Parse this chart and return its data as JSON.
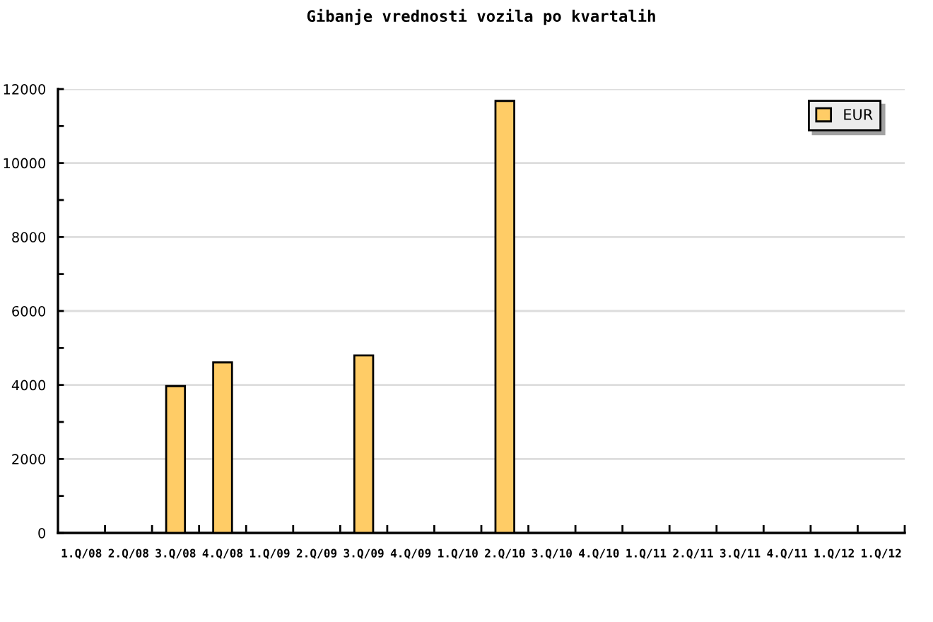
{
  "chart_data": {
    "type": "bar",
    "title": "Gibanje vrednosti vozila po kvartalih",
    "categories": [
      "1.Q/08",
      "2.Q/08",
      "3.Q/08",
      "4.Q/08",
      "1.Q/09",
      "2.Q/09",
      "3.Q/09",
      "4.Q/09",
      "1.Q/10",
      "2.Q/10",
      "3.Q/10",
      "4.Q/10",
      "1.Q/11",
      "2.Q/11",
      "3.Q/11",
      "4.Q/11",
      "1.Q/12",
      "1.Q/12"
    ],
    "series": [
      {
        "name": "EUR",
        "color": "#ffcc66",
        "values": [
          null,
          null,
          3970,
          4610,
          null,
          null,
          4800,
          null,
          null,
          11680,
          null,
          null,
          null,
          null,
          null,
          null,
          null,
          null
        ]
      }
    ],
    "ylim": [
      0,
      12000
    ],
    "yticks": [
      0,
      {
        "value": 1000,
        "label": null
      },
      2000,
      {
        "value": 3000,
        "label": null
      },
      4000,
      {
        "value": 5000,
        "label": null
      },
      6000,
      {
        "value": 7000,
        "label": null
      },
      8000,
      {
        "value": 9000,
        "label": null
      },
      10000,
      {
        "value": 11000,
        "label": null
      },
      12000
    ],
    "grid": "y",
    "legend": "top right"
  }
}
